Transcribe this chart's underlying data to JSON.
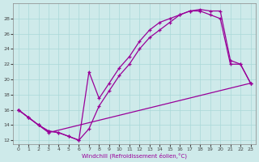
{
  "xlabel": "Windchill (Refroidissement éolien,°C)",
  "background_color": "#ceeaea",
  "line_color": "#990099",
  "xlim": [
    -0.5,
    23.5
  ],
  "ylim": [
    11.5,
    30.0
  ],
  "yticks": [
    12,
    14,
    16,
    18,
    20,
    22,
    24,
    26,
    28
  ],
  "xticks": [
    0,
    1,
    2,
    3,
    4,
    5,
    6,
    7,
    8,
    9,
    10,
    11,
    12,
    13,
    14,
    15,
    16,
    17,
    18,
    19,
    20,
    21,
    22,
    23
  ],
  "line1_x": [
    0,
    1,
    2,
    3,
    4,
    5,
    6,
    7,
    8,
    9,
    10,
    11,
    12,
    13,
    14,
    15,
    16,
    17,
    18,
    19,
    20,
    21,
    22,
    23
  ],
  "line1_y": [
    16.0,
    15.0,
    14.0,
    13.2,
    13.0,
    12.5,
    12.0,
    13.5,
    16.5,
    18.5,
    20.5,
    22.0,
    24.0,
    25.5,
    26.5,
    27.5,
    28.5,
    29.0,
    29.2,
    29.0,
    29.0,
    22.5,
    22.0,
    19.5
  ],
  "line2_x": [
    0,
    1,
    2,
    3,
    4,
    5,
    6,
    7,
    8,
    9,
    10,
    11,
    12,
    13,
    14,
    15,
    16,
    17,
    18,
    19,
    20,
    21,
    22,
    23
  ],
  "line2_y": [
    16.0,
    15.0,
    14.0,
    13.2,
    13.0,
    12.5,
    12.0,
    21.0,
    17.5,
    19.5,
    21.5,
    23.0,
    25.0,
    26.5,
    27.5,
    28.0,
    28.5,
    29.0,
    29.0,
    28.5,
    28.0,
    22.0,
    22.0,
    19.5
  ],
  "line3_x": [
    0,
    1,
    2,
    3,
    23
  ],
  "line3_y": [
    16.0,
    15.0,
    14.0,
    13.0,
    19.5
  ]
}
